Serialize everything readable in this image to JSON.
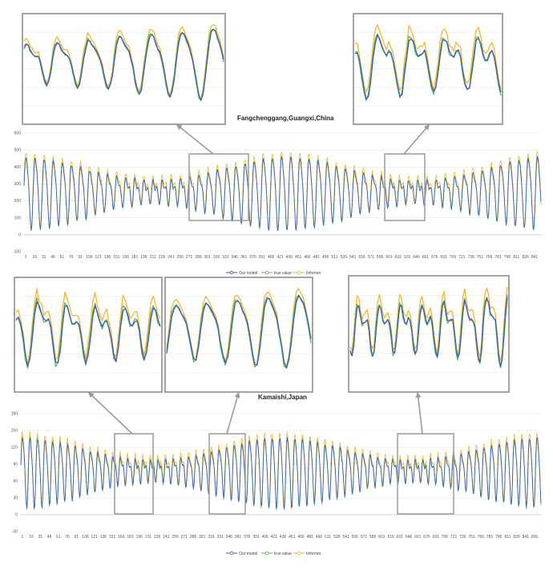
{
  "colors": {
    "our_model": "#3c5ab8",
    "true_value": "#5cb85c",
    "informer": "#f2b52e",
    "frame": "#9a9a9a",
    "grid": "#e6e6e6"
  },
  "legend": {
    "our_model": "Our model",
    "true_value": "true value",
    "informer": "Informer"
  },
  "chart_data": [
    {
      "type": "line",
      "title": "Fangchenggang,Guangxi,China",
      "ylim": [
        -100,
        600
      ],
      "y_ticks": [
        "600",
        "500",
        "400",
        "300",
        "200",
        "100",
        "0",
        "-100"
      ],
      "x_ticks": [
        "1",
        "16",
        "31",
        "46",
        "61",
        "76",
        "91",
        "106",
        "121",
        "136",
        "151",
        "166",
        "181",
        "196",
        "211",
        "226",
        "241",
        "256",
        "271",
        "286",
        "301",
        "316",
        "331",
        "346",
        "361",
        "376",
        "391",
        "406",
        "421",
        "436",
        "451",
        "466",
        "481",
        "496",
        "511",
        "526",
        "541",
        "556",
        "571",
        "586",
        "601",
        "616",
        "631",
        "646",
        "661",
        "676",
        "691",
        "706",
        "721",
        "736",
        "751",
        "766",
        "781",
        "796",
        "811",
        "826",
        "841"
      ],
      "series_names": [
        "Our model",
        "true value",
        "Informer"
      ],
      "cycle_len": 15,
      "n_points": 850,
      "mean": 260,
      "amplitude": 210,
      "zooms": [
        "286-361",
        "616-661"
      ],
      "grid": true,
      "legend_position": "bottom"
    },
    {
      "type": "line",
      "title": "Kamaishi,Japan",
      "ylim": [
        -30,
        180
      ],
      "y_ticks": [
        "180",
        "150",
        "120",
        "90",
        "60",
        "30",
        "0",
        "-30"
      ],
      "x_ticks": [
        "1",
        "16",
        "31",
        "46",
        "61",
        "76",
        "91",
        "106",
        "121",
        "136",
        "151",
        "166",
        "181",
        "196",
        "211",
        "226",
        "241",
        "256",
        "271",
        "286",
        "301",
        "316",
        "331",
        "346",
        "361",
        "376",
        "391",
        "406",
        "421",
        "436",
        "451",
        "466",
        "481",
        "496",
        "511",
        "526",
        "541",
        "556",
        "571",
        "586",
        "601",
        "616",
        "631",
        "646",
        "661",
        "676",
        "691",
        "706",
        "721",
        "736",
        "751",
        "766",
        "781",
        "796",
        "811",
        "826",
        "841",
        "856"
      ],
      "series_names": [
        "Our model",
        "true value",
        "Informer"
      ],
      "cycle_len": 12.5,
      "n_points": 860,
      "mean": 80,
      "amplitude": 62,
      "zooms": [
        "151-211",
        "301-361",
        "631-706"
      ],
      "grid": true,
      "legend_position": "bottom"
    }
  ]
}
